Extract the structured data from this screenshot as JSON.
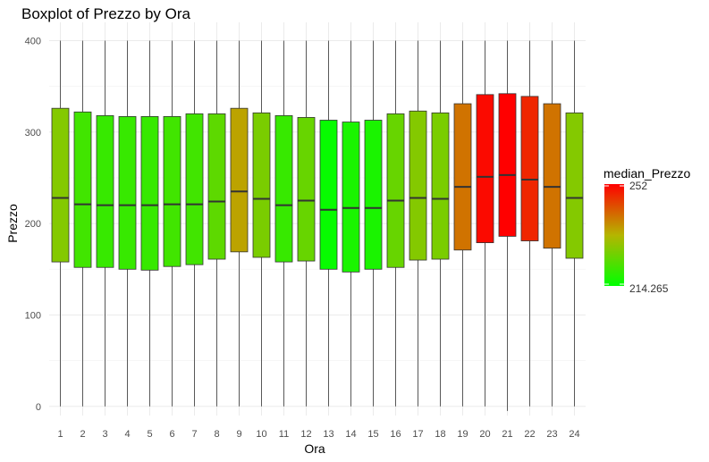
{
  "chart_data": {
    "type": "boxplot",
    "title": "Boxplot of Prezzo by Ora",
    "xlabel": "Ora",
    "ylabel": "Prezzo",
    "ylim": [
      -10,
      420
    ],
    "yticks": [
      "0",
      "100",
      "200",
      "300",
      "400"
    ],
    "categories": [
      "1",
      "2",
      "3",
      "4",
      "5",
      "6",
      "7",
      "8",
      "9",
      "10",
      "11",
      "12",
      "13",
      "14",
      "15",
      "16",
      "17",
      "18",
      "19",
      "20",
      "21",
      "22",
      "23",
      "24"
    ],
    "series": [
      {
        "q1": [
          158,
          152,
          152,
          150,
          149,
          153,
          155,
          161,
          169,
          163,
          158,
          159,
          150,
          147,
          150,
          152,
          160,
          161,
          171,
          179,
          186,
          181,
          173,
          162
        ],
        "median": [
          228,
          221,
          220,
          220,
          220,
          221,
          221,
          224,
          235,
          227,
          220,
          225,
          215,
          217,
          217,
          225,
          228,
          227,
          240,
          251,
          253,
          248,
          240,
          228
        ],
        "q3": [
          326,
          322,
          318,
          317,
          317,
          317,
          320,
          320,
          326,
          321,
          318,
          316,
          313,
          311,
          313,
          320,
          323,
          321,
          331,
          341,
          342,
          339,
          331,
          321
        ],
        "whisker_low": [
          0,
          0,
          0,
          0,
          0,
          0,
          0,
          0,
          0,
          0,
          0,
          0,
          0,
          0,
          0,
          0,
          0,
          0,
          0,
          0,
          -5,
          0,
          0,
          0
        ],
        "whisker_high": [
          400,
          400,
          400,
          400,
          400,
          400,
          400,
          400,
          400,
          400,
          400,
          400,
          400,
          400,
          400,
          400,
          400,
          400,
          400,
          400,
          400,
          400,
          400,
          400
        ]
      }
    ],
    "legend": {
      "title": "median_Prezzo",
      "placement": "right",
      "min_label": "214.265",
      "max_label": "252",
      "min_value": 214.265,
      "max_value": 252,
      "low_color": "#00ff00",
      "high_color": "#ff0000"
    },
    "grid": true
  }
}
